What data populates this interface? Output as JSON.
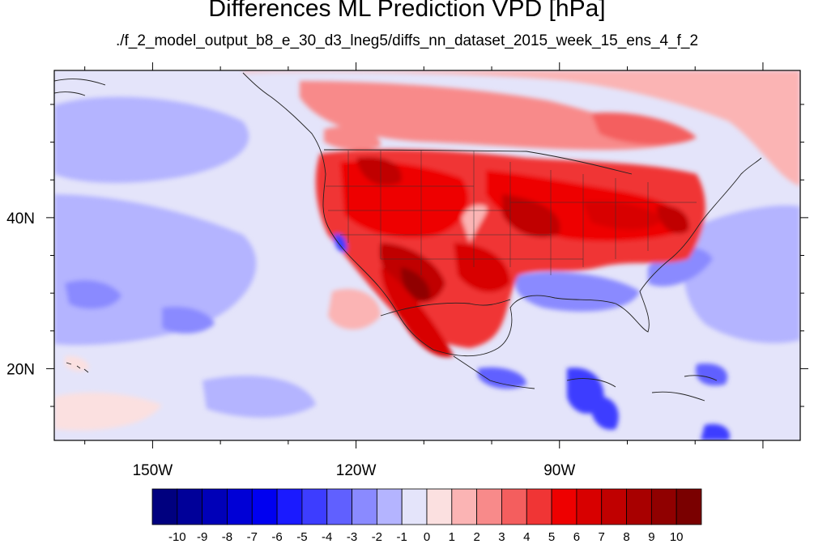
{
  "title": "Differences ML Prediction VPD [hPa]",
  "subtitle": "./f_2_model_output_b8_e_30_d3_lneg5/diffs_nn_dataset_2015_week_15_ens_4_f_2",
  "map": {
    "lon_range": [
      -164.5,
      -54.5
    ],
    "lat_range": [
      10.5,
      59.5
    ],
    "lon_ticks": [
      {
        "value": -150,
        "label": "150W"
      },
      {
        "value": -120,
        "label": "120W"
      },
      {
        "value": -90,
        "label": "90W"
      }
    ],
    "lat_ticks": [
      {
        "value": 40,
        "label": "40N"
      },
      {
        "value": 20,
        "label": "20N"
      }
    ]
  },
  "colorbar": {
    "labels": [
      "-10",
      "-9",
      "-8",
      "-7",
      "-6",
      "-5",
      "-4",
      "-3",
      "-2",
      "-1",
      "0",
      "1",
      "2",
      "3",
      "4",
      "5",
      "6",
      "7",
      "8",
      "9",
      "10"
    ],
    "colors": [
      "#00007f",
      "#000099",
      "#0000b8",
      "#0000d6",
      "#0000f0",
      "#1a1aff",
      "#3d3dff",
      "#6060ff",
      "#8a8aff",
      "#b4b4ff",
      "#e4e4fa",
      "#fbe0e0",
      "#fbb4b4",
      "#f88a8a",
      "#f45e5e",
      "#f03535",
      "#ee0000",
      "#d80000",
      "#c00000",
      "#a80000",
      "#900000",
      "#7a0000"
    ]
  }
}
